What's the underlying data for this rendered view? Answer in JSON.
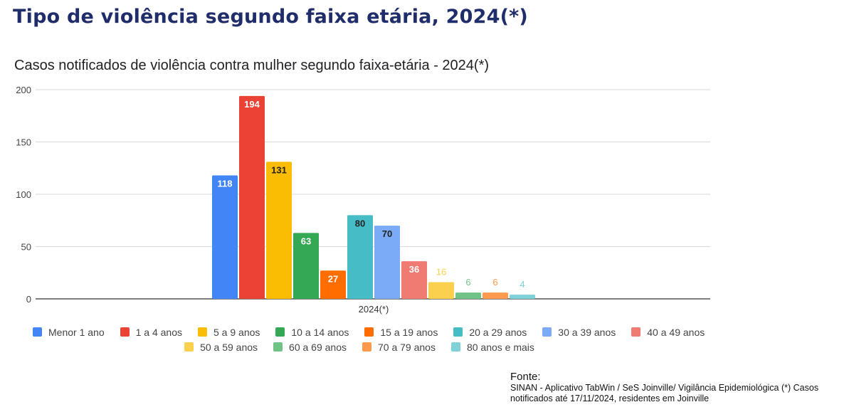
{
  "page_title": "Tipo de violência segundo faixa etária,  2024(*)",
  "source": {
    "label": "Fonte:",
    "text": "SINAN - Aplicativo TabWin / SeS Joinville/ Vigilância Epidemiológica (*) Casos notificados até 17/11/2024, residentes em Joinville"
  },
  "chart_data": {
    "type": "bar",
    "title": "Casos notificados de violência contra mulher segundo faixa-etária - 2024(*)",
    "categories": [
      "2024(*)"
    ],
    "xlabel": "",
    "ylabel": "",
    "ylim": [
      0,
      200
    ],
    "yticks": [
      0,
      50,
      100,
      150,
      200
    ],
    "grid": true,
    "legend_position": "bottom",
    "series": [
      {
        "name": "Menor 1 ano",
        "values": [
          118
        ],
        "color": "#4285f4"
      },
      {
        "name": "1 a 4 anos",
        "values": [
          194
        ],
        "color": "#ea4335"
      },
      {
        "name": "5 a 9 anos",
        "values": [
          131
        ],
        "color": "#fbbc04"
      },
      {
        "name": "10 a 14 anos",
        "values": [
          63
        ],
        "color": "#34a853"
      },
      {
        "name": "15 a 19 anos",
        "values": [
          27
        ],
        "color": "#ff6d01"
      },
      {
        "name": "20 a 29 anos",
        "values": [
          80
        ],
        "color": "#46bdc6"
      },
      {
        "name": "30 a 39 anos",
        "values": [
          70
        ],
        "color": "#7baaf7"
      },
      {
        "name": "40 a 49 anos",
        "values": [
          36
        ],
        "color": "#f07b72"
      },
      {
        "name": "50 a 59 anos",
        "values": [
          16
        ],
        "color": "#fcd04f"
      },
      {
        "name": "60 a 69 anos",
        "values": [
          6
        ],
        "color": "#71c287"
      },
      {
        "name": "70 a 79 anos",
        "values": [
          6
        ],
        "color": "#ff994d"
      },
      {
        "name": "80 anos e mais",
        "values": [
          4
        ],
        "color": "#7ed1d7"
      }
    ]
  }
}
